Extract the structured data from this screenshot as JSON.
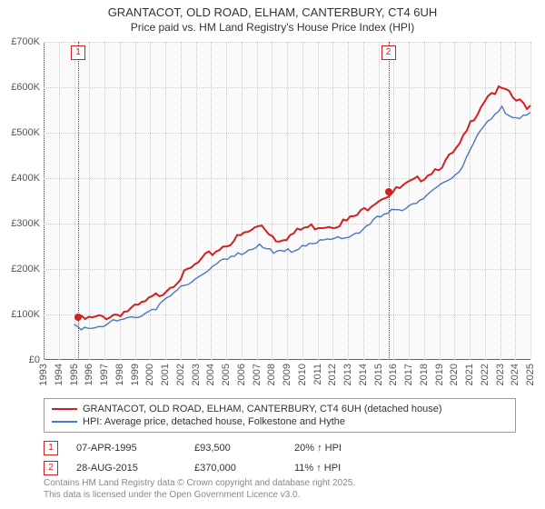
{
  "title": "GRANTACOT, OLD ROAD, ELHAM, CANTERBURY, CT4 6UH",
  "subtitle": "Price paid vs. HM Land Registry's House Price Index (HPI)",
  "chart": {
    "type": "line",
    "background_color": "#fafafa",
    "grid_color": "#cccccc",
    "axis_color": "#666666",
    "x_min": 1993,
    "x_max": 2025,
    "x_ticks": [
      1993,
      1994,
      1995,
      1996,
      1997,
      1998,
      1999,
      2000,
      2001,
      2002,
      2003,
      2004,
      2005,
      2006,
      2007,
      2008,
      2009,
      2010,
      2011,
      2012,
      2013,
      2014,
      2015,
      2016,
      2017,
      2018,
      2019,
      2020,
      2021,
      2022,
      2023,
      2024,
      2025
    ],
    "y_min": 0,
    "y_max": 700000,
    "y_ticks": [
      0,
      100000,
      200000,
      300000,
      400000,
      500000,
      600000,
      700000
    ],
    "y_tick_labels": [
      "£0",
      "£100K",
      "£200K",
      "£300K",
      "£400K",
      "£500K",
      "£600K",
      "£700K"
    ],
    "x_label_fontsize": 11,
    "y_label_fontsize": 11,
    "x_label_rotation": -90,
    "series": [
      {
        "name": "GRANTACOT, OLD ROAD, ELHAM, CANTERBURY, CT4 6UH (detached house)",
        "color": "#d02020",
        "line_width": 2,
        "start_year": 1995.27,
        "values": [
          93,
          95,
          100,
          108,
          118,
          135,
          155,
          180,
          205,
          230,
          250,
          268,
          285,
          302,
          270,
          278,
          295,
          300,
          302,
          310,
          328,
          355,
          370,
          385,
          400,
          420,
          440,
          475,
          540,
          590,
          600,
          575,
          560
        ]
      },
      {
        "name": "HPI: Average price, detached house, Folkestone and Hythe",
        "color": "#4a78c0",
        "line_width": 1.4,
        "start_year": 1995,
        "values": [
          75,
          78,
          82,
          88,
          96,
          108,
          125,
          148,
          172,
          195,
          212,
          228,
          243,
          260,
          235,
          242,
          258,
          263,
          265,
          272,
          288,
          310,
          325,
          338,
          352,
          370,
          390,
          420,
          480,
          525,
          555,
          540,
          545
        ]
      }
    ],
    "markers": [
      {
        "id": "1",
        "year": 1995.27,
        "value": 93500
      },
      {
        "id": "2",
        "year": 2015.66,
        "value": 370000
      }
    ]
  },
  "legend": {
    "items": [
      {
        "color": "#d02020",
        "label": "GRANTACOT, OLD ROAD, ELHAM, CANTERBURY, CT4 6UH (detached house)"
      },
      {
        "color": "#4a78c0",
        "label": "HPI: Average price, detached house, Folkestone and Hythe"
      }
    ]
  },
  "transactions": [
    {
      "id": "1",
      "date": "07-APR-1995",
      "price": "£93,500",
      "hpi": "20% ↑ HPI"
    },
    {
      "id": "2",
      "date": "28-AUG-2015",
      "price": "£370,000",
      "hpi": "11% ↑ HPI"
    }
  ],
  "footnote_line1": "Contains HM Land Registry data © Crown copyright and database right 2025.",
  "footnote_line2": "This data is licensed under the Open Government Licence v3.0."
}
